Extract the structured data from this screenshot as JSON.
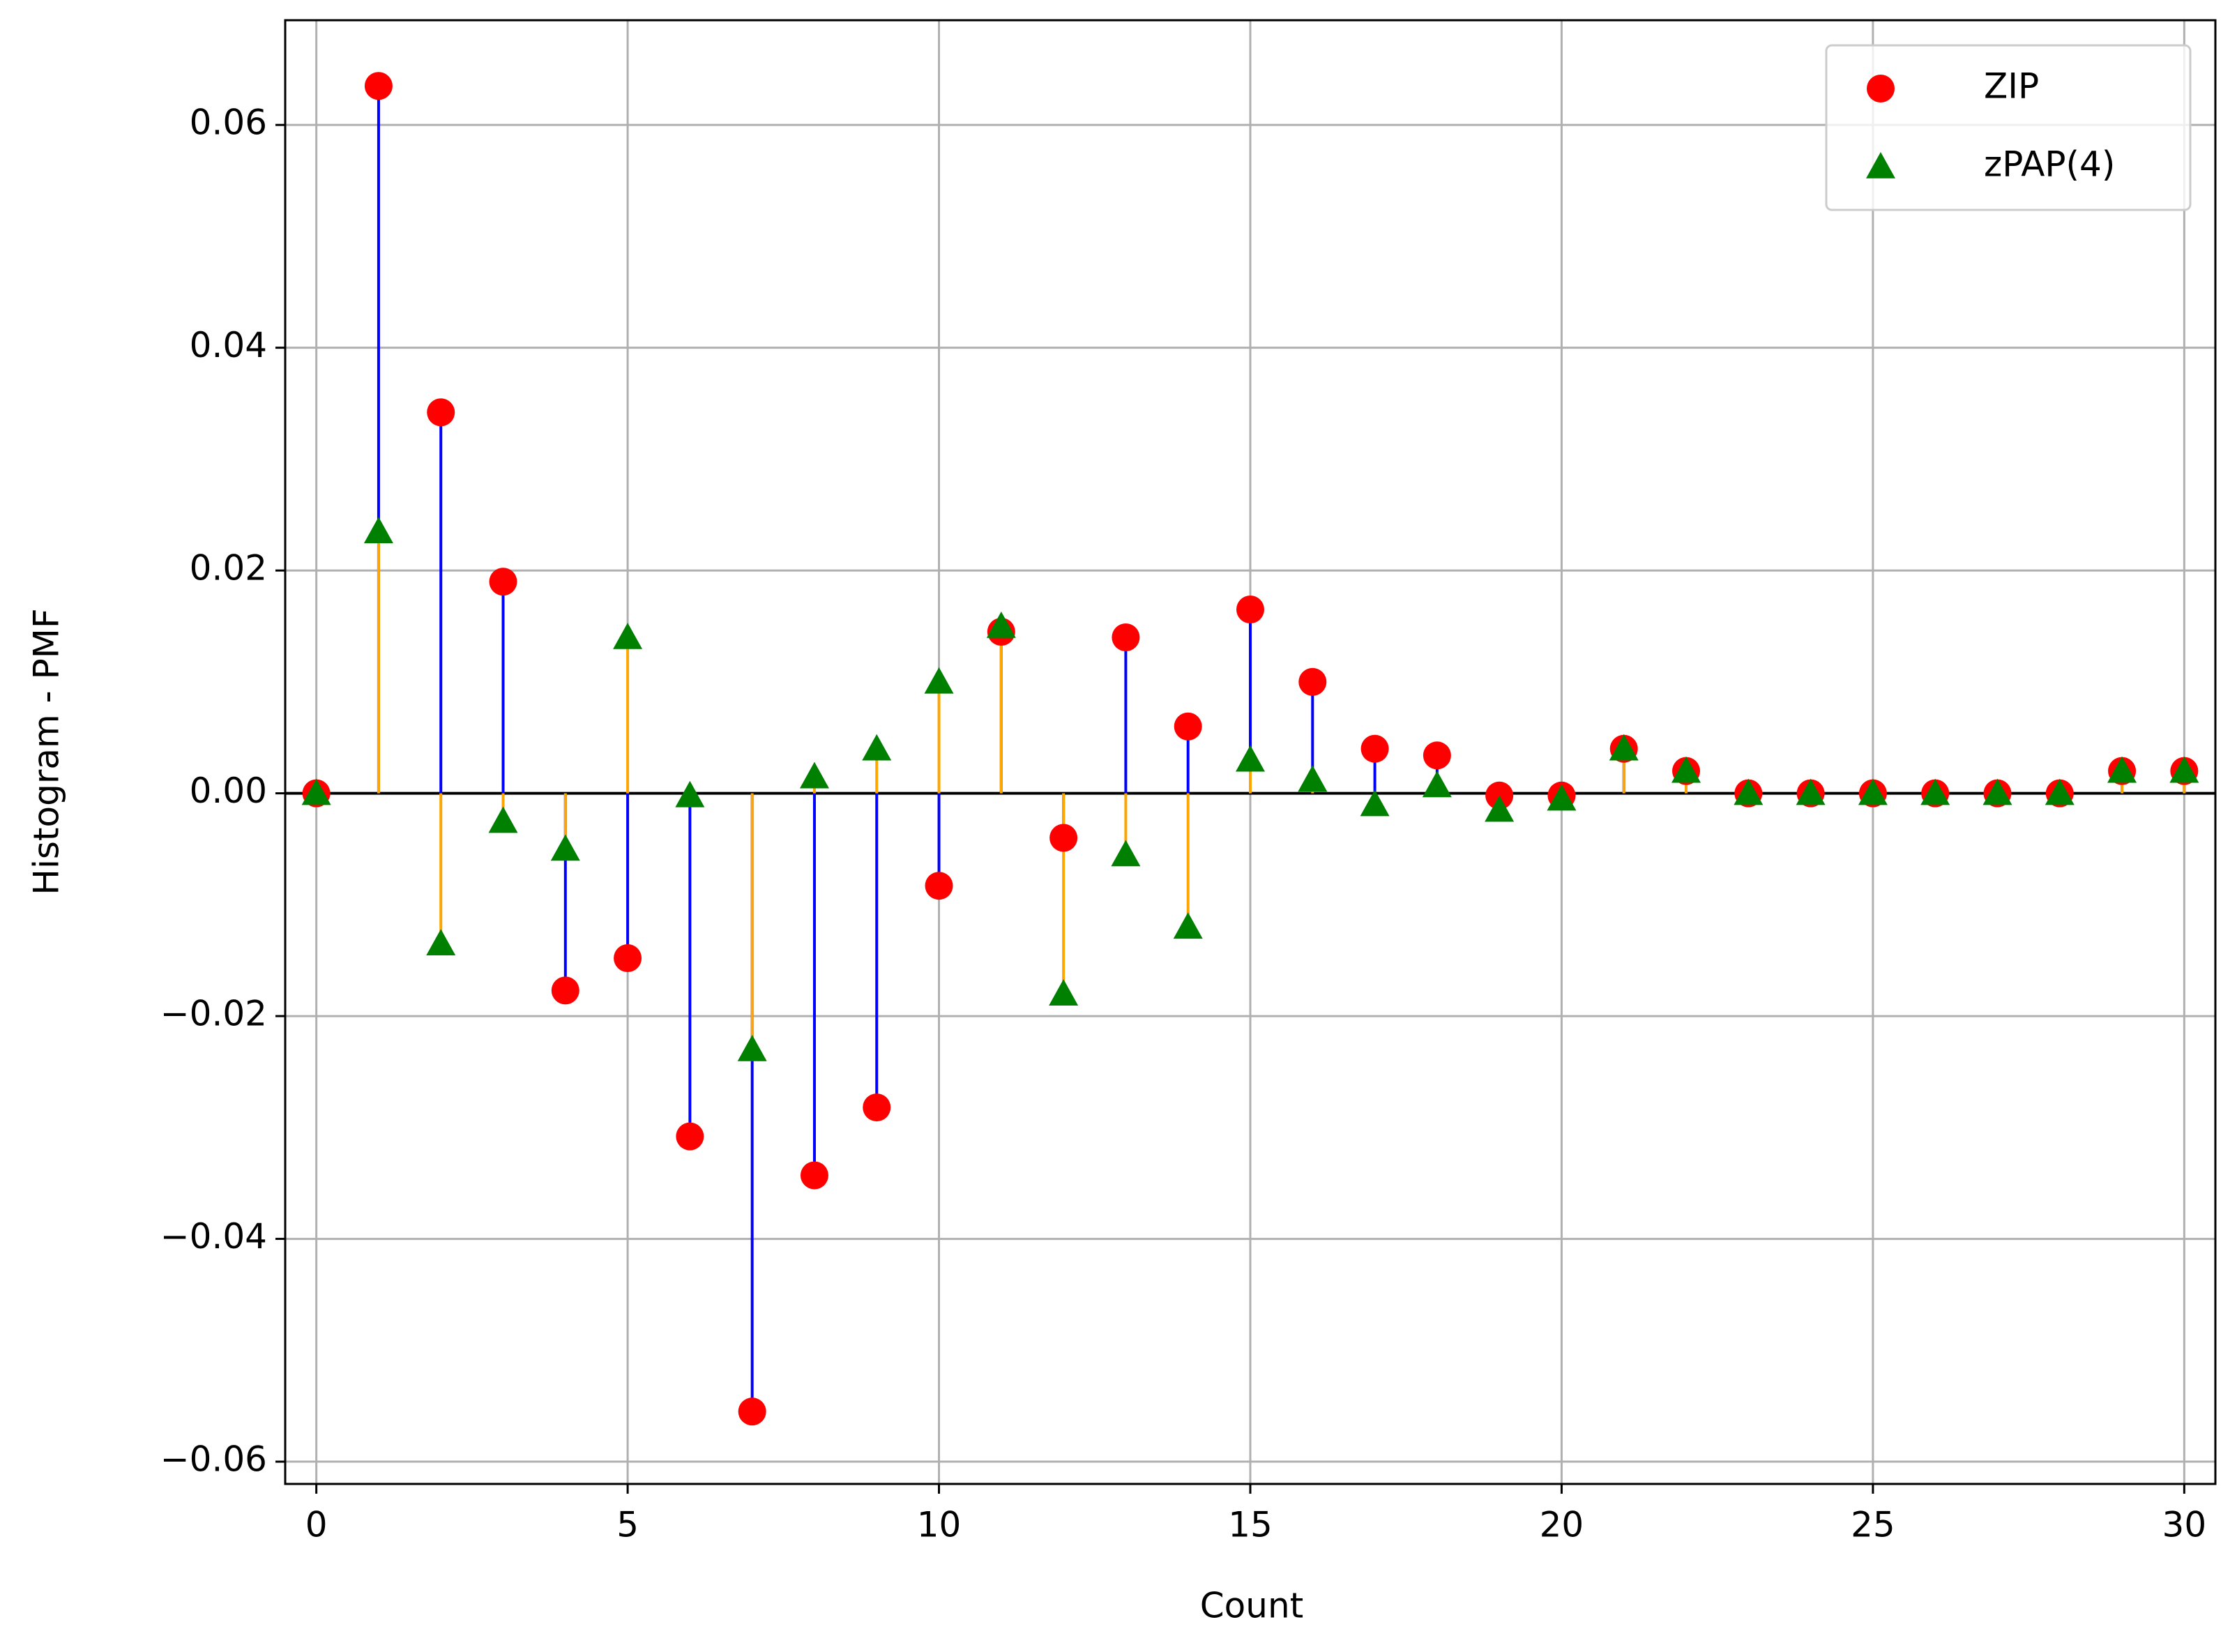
{
  "chart_data": {
    "type": "stem",
    "xlabel": "Count",
    "ylabel": "Histogram - PMF",
    "x": [
      0,
      1,
      2,
      3,
      4,
      5,
      6,
      7,
      8,
      9,
      10,
      11,
      12,
      13,
      14,
      15,
      16,
      17,
      18,
      19,
      20,
      21,
      22,
      23,
      24,
      25,
      26,
      27,
      28,
      29,
      30
    ],
    "series": [
      {
        "name": "ZIP",
        "color": "#ff0000",
        "stem_color": "#0000ff",
        "marker": "circle",
        "values": [
          0,
          0.0635,
          0.0342,
          0.019,
          -0.0177,
          -0.0148,
          -0.0308,
          -0.0555,
          -0.0343,
          -0.0282,
          -0.0083,
          0.0145,
          -0.004,
          0.014,
          0.006,
          0.0165,
          0.01,
          0.004,
          0.0034,
          -0.0002,
          -0.0002,
          0.004,
          0.002,
          0,
          0,
          0,
          0,
          0,
          0,
          0.002,
          0.002
        ]
      },
      {
        "name": "zPAP(4)",
        "color": "#008000",
        "stem_color": "#ffa500",
        "marker": "triangle",
        "values": [
          0,
          0.0235,
          -0.0135,
          -0.0025,
          -0.005,
          0.014,
          -0.0002,
          -0.023,
          0.0015,
          0.004,
          0.01,
          0.015,
          -0.018,
          -0.0055,
          -0.012,
          0.003,
          0.0012,
          -0.001,
          0.0007,
          -0.0015,
          -0.0005,
          0.004,
          0.002,
          0,
          0,
          0,
          0,
          0,
          0,
          0.002,
          0.002
        ]
      }
    ],
    "xlim": [
      -0.5,
      30.5
    ],
    "ylim": [
      -0.062,
      0.0694
    ],
    "xticks": [
      0,
      5,
      10,
      15,
      20,
      25,
      30
    ],
    "yticks": [
      {
        "value": -0.06,
        "label": "−0.06"
      },
      {
        "value": -0.04,
        "label": "−0.04"
      },
      {
        "value": -0.02,
        "label": "−0.02"
      },
      {
        "value": 0,
        "label": "0.00"
      },
      0.02,
      0.04,
      0.06
    ],
    "grid": true,
    "legend": "upper right"
  }
}
